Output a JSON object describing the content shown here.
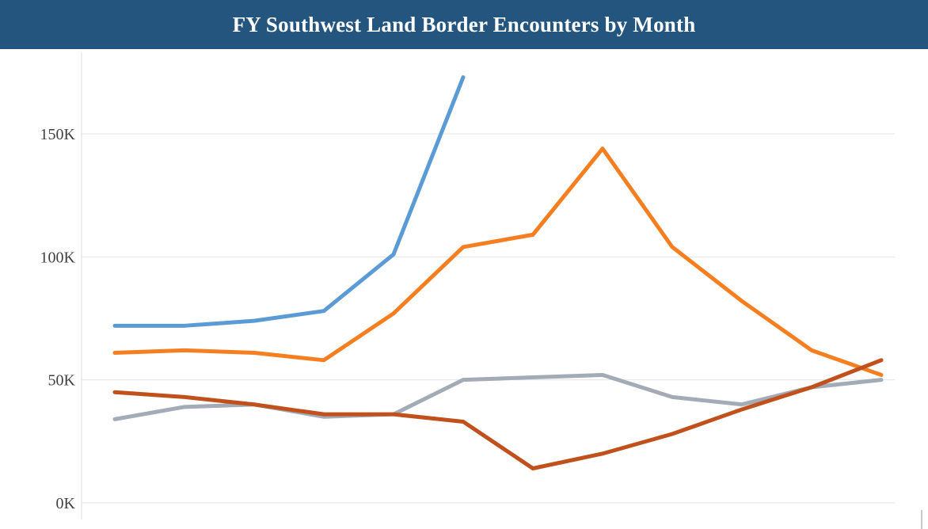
{
  "header": {
    "title": "FY Southwest Land Border Encounters by Month",
    "bg_color": "#24557f",
    "text_color": "#ffffff"
  },
  "chart_data": {
    "type": "line",
    "title": "FY Southwest Land Border Encounters by Month",
    "unit": "thousands of encounters",
    "x_count": 12,
    "x_axis_labels_visible": false,
    "xlabel": "",
    "ylabel": "",
    "ylim": [
      0,
      183
    ],
    "grid": true,
    "legend": "none",
    "yticks": [
      {
        "value": 0,
        "label": "0K"
      },
      {
        "value": 50,
        "label": "50K"
      },
      {
        "value": 100,
        "label": "100K"
      },
      {
        "value": 150,
        "label": "150K"
      }
    ],
    "series": [
      {
        "name": "blue-line",
        "color": "#5b9bd5",
        "values": [
          72,
          72,
          74,
          78,
          101,
          173
        ]
      },
      {
        "name": "orange-line",
        "color": "#f57e20",
        "values": [
          61,
          62,
          61,
          58,
          77,
          104,
          109,
          144,
          104,
          82,
          62,
          52
        ]
      },
      {
        "name": "gray-line",
        "color": "#a3abb6",
        "values": [
          34,
          39,
          40,
          35,
          36,
          50,
          51,
          52,
          43,
          40,
          47,
          50
        ]
      },
      {
        "name": "dark-red-line",
        "color": "#c0511d",
        "values": [
          45,
          43,
          40,
          36,
          36,
          33,
          14,
          20,
          28,
          38,
          47,
          58
        ]
      }
    ]
  }
}
